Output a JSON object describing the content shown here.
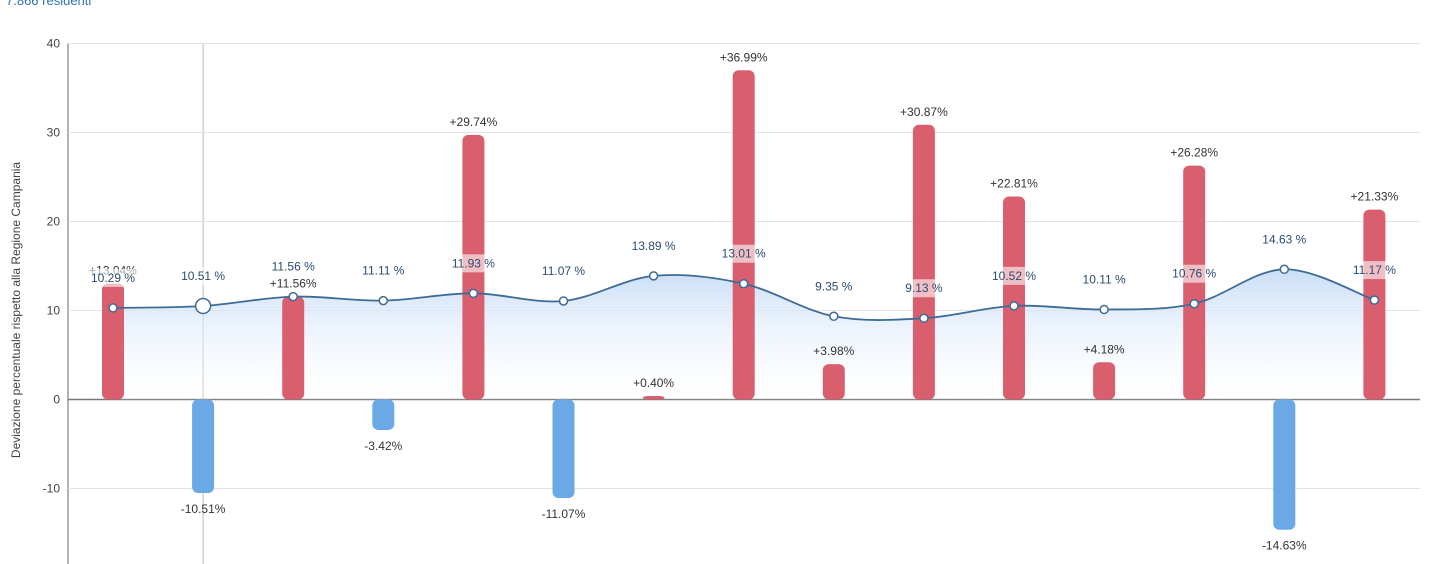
{
  "header": {
    "subtitle": "7.866 residenti"
  },
  "chart_data": {
    "type": "bar",
    "ylabel": "Deviazione percentuale rispetto alla Regione Campania",
    "ylim": [
      -18,
      40
    ],
    "yticks": [
      -10,
      0,
      10,
      20,
      30,
      40
    ],
    "grid": true,
    "colors": {
      "positive": "#d95f6e",
      "negative": "#6aa8e6",
      "line": "#3f6b95",
      "area": "#d6e6fb"
    },
    "series": [
      {
        "type": "bar",
        "values": [
          13.04,
          -10.51,
          11.56,
          -3.42,
          29.74,
          -11.07,
          0.4,
          36.99,
          3.98,
          30.87,
          22.81,
          4.18,
          26.28,
          -14.63,
          21.33
        ],
        "labels": [
          "+13.04%",
          "-10.51%",
          "+11.56%",
          "-3.42%",
          "+29.74%",
          "-11.07%",
          "+0.40%",
          "+36.99%",
          "+3.98%",
          "+30.87%",
          "+22.81%",
          "+4.18%",
          "+26.28%",
          "-14.63%",
          "+21.33%"
        ]
      },
      {
        "type": "line",
        "values": [
          10.29,
          10.51,
          11.56,
          11.11,
          11.93,
          11.07,
          13.89,
          13.01,
          9.35,
          9.13,
          10.52,
          10.11,
          10.76,
          14.63,
          11.17
        ],
        "labels": [
          "10.29 %",
          "10.51 %",
          "11.56 %",
          "11.11 %",
          "11.93 %",
          "11.07 %",
          "13.89 %",
          "13.01 %",
          "9.35 %",
          "9.13 %",
          "10.52 %",
          "10.11 %",
          "10.76 %",
          "14.63 %",
          "11.17 %"
        ]
      }
    ]
  }
}
